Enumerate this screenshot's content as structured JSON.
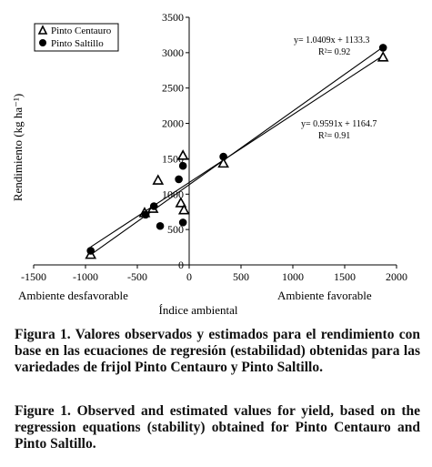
{
  "chart_data": {
    "type": "scatter",
    "xlabel": "Índice ambiental",
    "ylabel": "Rendimiento (kg ha⁻¹)",
    "xlim": [
      -1500,
      2000
    ],
    "ylim": [
      0,
      3500
    ],
    "x_ticks": [
      "-1500",
      "-1000",
      "-500",
      "0",
      "500",
      "1000",
      "1500",
      "2000"
    ],
    "y_ticks": [
      "0",
      "500",
      "1000",
      "1500",
      "2000",
      "2500",
      "3000",
      "3500"
    ],
    "x_annotations": {
      "left": "Ambiente desfavorable",
      "right": "Ambiente favorable"
    },
    "legend_position": "top-left",
    "series": [
      {
        "name": "Pinto Centauro",
        "marker": "triangle",
        "points": [
          [
            -950,
            140
          ],
          [
            -430,
            730
          ],
          [
            -350,
            790
          ],
          [
            -300,
            1190
          ],
          [
            -80,
            870
          ],
          [
            -60,
            1540
          ],
          [
            -50,
            770
          ],
          [
            330,
            1430
          ],
          [
            1870,
            2930
          ]
        ],
        "regression": {
          "slope": 0.9591,
          "intercept": 1164.7,
          "equation": "y= 0.9591x + 1164.7",
          "r2": "R²= 0.91"
        }
      },
      {
        "name": "Pinto Saltillo",
        "marker": "circle",
        "points": [
          [
            -950,
            200
          ],
          [
            -420,
            710
          ],
          [
            -340,
            830
          ],
          [
            -280,
            550
          ],
          [
            -100,
            1210
          ],
          [
            -60,
            1400
          ],
          [
            -60,
            600
          ],
          [
            330,
            1530
          ],
          [
            1870,
            3070
          ]
        ],
        "regression": {
          "slope": 1.0409,
          "intercept": 1133.3,
          "equation": "y= 1.0409x + 1133.3",
          "r2": "R²= 0.92"
        }
      }
    ]
  },
  "caption": {
    "es_label": "Figura 1.",
    "es_text": "Valores observados y estimados para el rendimiento con base en las ecuaciones de regresión (estabilidad) obtenidas para las variedades de frijol Pinto Centauro y Pinto Saltillo.",
    "en_label": "Figure 1.",
    "en_text": "Observed and estimated values for yield, based on the regression equations (stability) obtained for Pinto Centauro and Pinto Saltillo."
  }
}
